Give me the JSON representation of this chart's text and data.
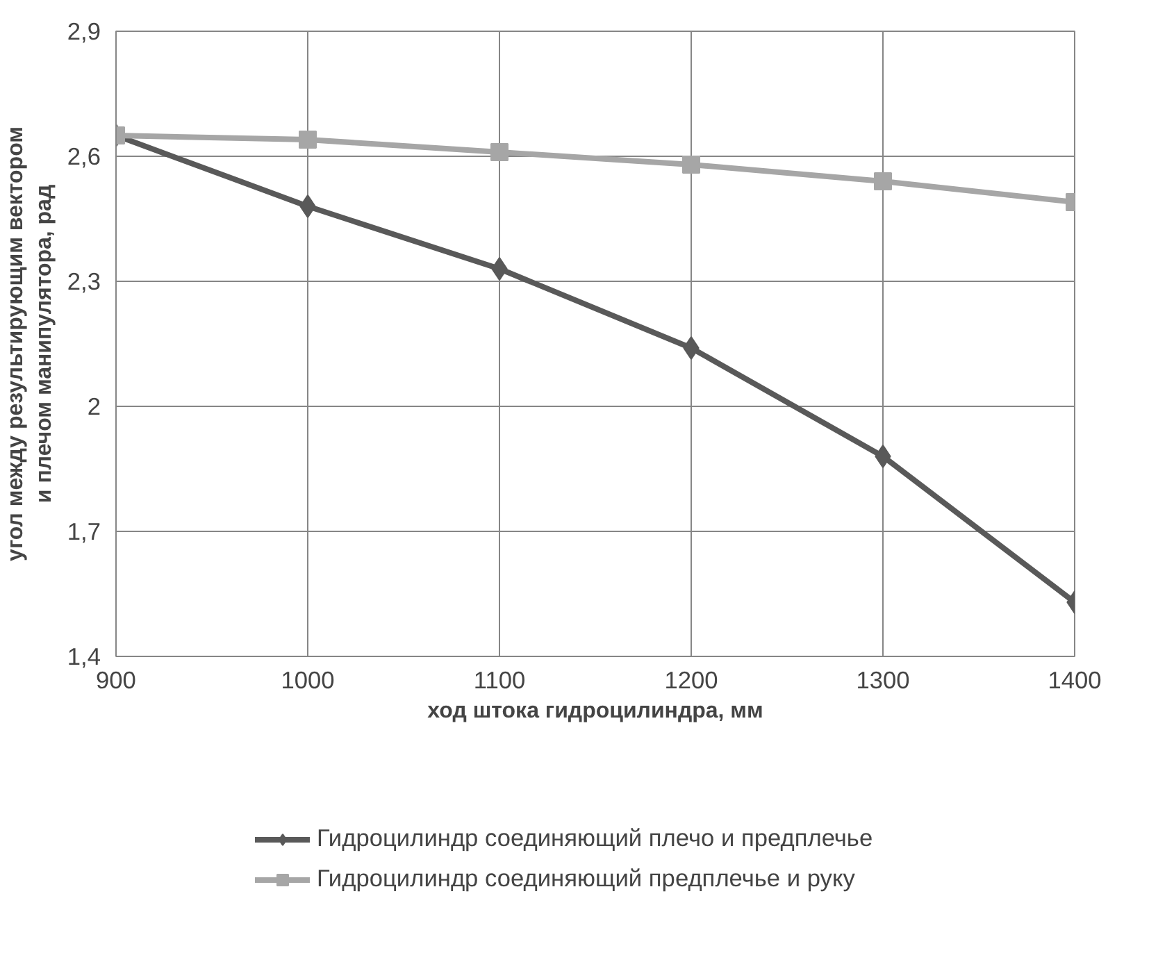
{
  "chart_data": {
    "type": "line",
    "xlabel": "ход штока гидроцилиндра, мм",
    "ylabel": "угол между результирующим вектором и плечом манипулятора, рад",
    "x": [
      900,
      1000,
      1100,
      1200,
      1300,
      1400
    ],
    "series": [
      {
        "name": "Гидроцилиндр соединяющий плечо и предплечье",
        "color": "#595959",
        "marker": "diamond",
        "values": [
          2.65,
          2.48,
          2.33,
          2.14,
          1.88,
          1.53
        ]
      },
      {
        "name": "Гидроцилиндр соединяющий предплечье и руку",
        "color": "#a6a6a6",
        "marker": "square",
        "values": [
          2.65,
          2.64,
          2.61,
          2.58,
          2.54,
          2.49
        ]
      }
    ],
    "xlim": [
      900,
      1400
    ],
    "xticks": [
      900,
      1000,
      1100,
      1200,
      1300,
      1400
    ],
    "ylim": [
      1.4,
      2.9
    ],
    "yticks": [
      {
        "value": 1.4,
        "label": "1,4"
      },
      {
        "value": 1.7,
        "label": "1,7"
      },
      2,
      {
        "value": 2.3,
        "label": "2,3"
      },
      {
        "value": 2.6,
        "label": "2,6"
      },
      {
        "value": 2.9,
        "label": "2,9"
      }
    ],
    "grid": true,
    "legend": "bottom",
    "line_style": "solid"
  }
}
